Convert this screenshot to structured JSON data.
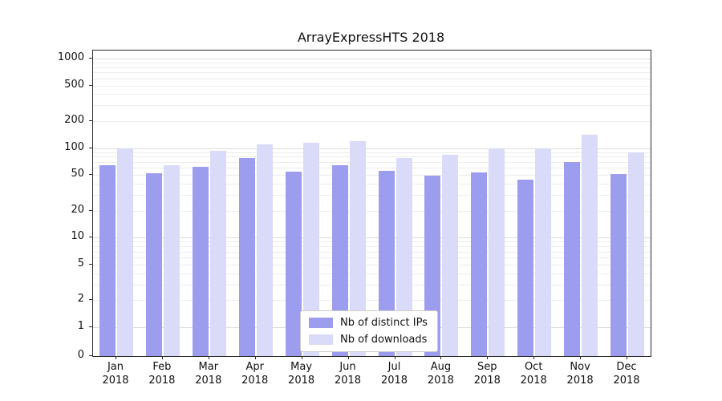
{
  "title": "ArrayExpressHTS 2018",
  "chart_data": {
    "type": "bar",
    "title": "ArrayExpressHTS 2018",
    "yscale": "symlog",
    "grid": true,
    "legend_position": "lower center",
    "ylim": [
      0,
      1225
    ],
    "yticks": [
      0,
      1,
      2,
      5,
      10,
      20,
      50,
      100,
      200,
      500,
      1000
    ],
    "categories": [
      "Jan 2018",
      "Feb 2018",
      "Mar 2018",
      "Apr 2018",
      "May 2018",
      "Jun 2018",
      "Jul 2018",
      "Aug 2018",
      "Sep 2018",
      "Oct 2018",
      "Nov 2018",
      "Dec 2018"
    ],
    "series": [
      {
        "name": "Nb of distinct IPs",
        "color": "#9d9def",
        "values": [
          65,
          52,
          62,
          78,
          55,
          64,
          56,
          49,
          53,
          44,
          70,
          51
        ]
      },
      {
        "name": "Nb of downloads",
        "color": "#dadaf9",
        "values": [
          100,
          65,
          93,
          110,
          115,
          120,
          78,
          85,
          100,
          100,
          140,
          90
        ]
      }
    ]
  }
}
